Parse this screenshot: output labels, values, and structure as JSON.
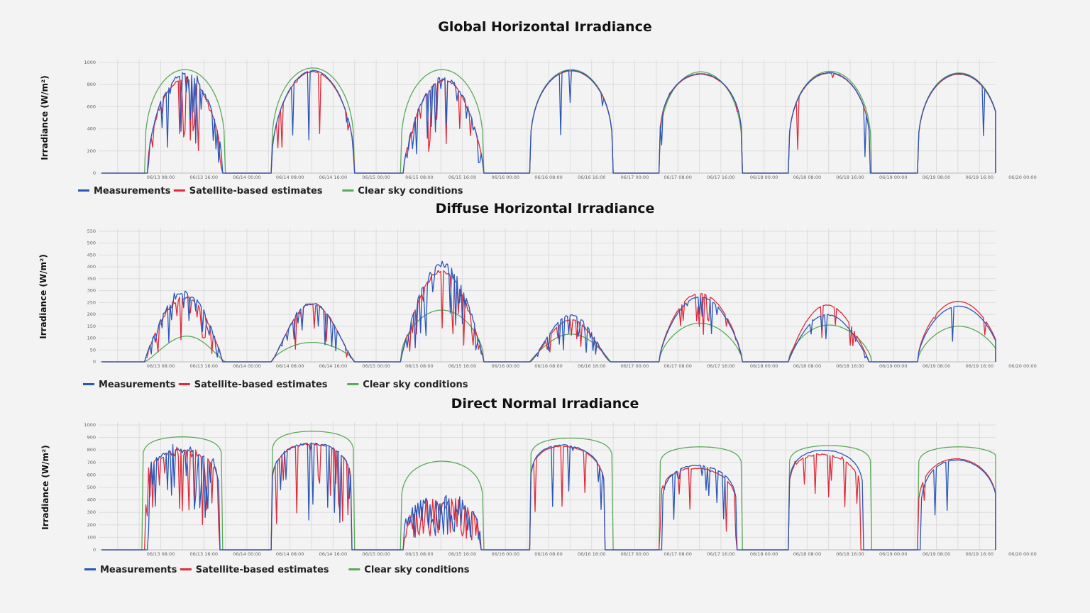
{
  "colors": {
    "measurements": "#2a56b6",
    "satellite": "#e02a3a",
    "clearsky": "#5aaa5a",
    "grid": "#dcdcdc"
  },
  "legend": [
    "Measurements",
    "Satellite-based estimates",
    "Clear sky conditions"
  ],
  "x_tick_labels": [
    "06/13 08:00",
    "06/13 16:00",
    "06/14 00:00",
    "06/14 08:00",
    "06/14 16:00",
    "06/15 00:00",
    "06/15 08:00",
    "06/15 16:00",
    "06/16 00:00",
    "06/16 08:00",
    "06/16 16:00",
    "06/17 00:00",
    "06/17 08:00",
    "06/17 16:00",
    "06/18 00:00",
    "06/18 08:00",
    "06/18 16:00",
    "06/19 00:00",
    "06/19 08:00",
    "06/19 16:00",
    "06/20 00:00"
  ],
  "chart_data": [
    {
      "type": "line",
      "title": "Global Horizontal Irradiance",
      "ylabel": "Irradiance (W/m²)",
      "xlabel": "",
      "ylim": [
        0,
        1000
      ],
      "yticks": [
        0,
        200,
        400,
        600,
        800,
        1000
      ],
      "x_range_hours": [
        -3,
        163
      ],
      "day_offset_hours": 24,
      "series": [
        {
          "name": "Measurements",
          "color": "#2a56b6",
          "days": [
            {
              "start": 5.5,
              "end": 19.5,
              "peak": 920,
              "center": 12.5,
              "width": 0.55,
              "noise": 0.32,
              "seed": 11
            },
            {
              "start": 4.5,
              "end": 20.0,
              "peak": 930,
              "center": 12.2,
              "width": 0.45,
              "noise": 0.06,
              "seed": 12
            },
            {
              "start": 5.0,
              "end": 20.0,
              "peak": 880,
              "center": 12.5,
              "width": 0.7,
              "noise": 0.38,
              "seed": 13
            },
            {
              "start": 4.5,
              "end": 20.0,
              "peak": 930,
              "center": 12.3,
              "width": 0.3,
              "noise": 0.03,
              "seed": 14
            },
            {
              "start": 4.5,
              "end": 20.0,
              "peak": 900,
              "center": 12.3,
              "width": 0.25,
              "noise": 0.03,
              "seed": 15
            },
            {
              "start": 4.5,
              "end": 19.8,
              "peak": 910,
              "center": 12.3,
              "width": 0.3,
              "noise": 0.04,
              "seed": 16
            },
            {
              "start": 4.5,
              "end": 20.0,
              "peak": 900,
              "center": 12.3,
              "width": 0.3,
              "noise": 0.02,
              "seed": 17
            }
          ]
        },
        {
          "name": "Satellite-based estimates",
          "color": "#e02a3a",
          "days": [
            {
              "start": 5.5,
              "end": 19.5,
              "peak": 870,
              "center": 12.5,
              "width": 0.55,
              "noise": 0.2,
              "seed": 21
            },
            {
              "start": 4.5,
              "end": 20.0,
              "peak": 920,
              "center": 12.2,
              "width": 0.45,
              "noise": 0.05,
              "seed": 22
            },
            {
              "start": 5.0,
              "end": 20.0,
              "peak": 860,
              "center": 12.5,
              "width": 0.7,
              "noise": 0.25,
              "seed": 23
            },
            {
              "start": 4.5,
              "end": 20.0,
              "peak": 925,
              "center": 12.3,
              "width": 0.3,
              "noise": 0.02,
              "seed": 24
            },
            {
              "start": 4.5,
              "end": 20.0,
              "peak": 895,
              "center": 12.3,
              "width": 0.25,
              "noise": 0.03,
              "seed": 25
            },
            {
              "start": 4.5,
              "end": 19.8,
              "peak": 905,
              "center": 12.3,
              "width": 0.3,
              "noise": 0.03,
              "seed": 26
            },
            {
              "start": 4.5,
              "end": 20.0,
              "peak": 895,
              "center": 12.3,
              "width": 0.3,
              "noise": 0.02,
              "seed": 27
            }
          ]
        },
        {
          "name": "Clear sky conditions",
          "color": "#5aaa5a",
          "days": [
            {
              "start": 5.0,
              "end": 20.0,
              "peak": 935,
              "center": 12.5,
              "width": 0.3,
              "noise": 0,
              "seed": 31
            },
            {
              "start": 4.5,
              "end": 20.0,
              "peak": 950,
              "center": 12.3,
              "width": 0.3,
              "noise": 0,
              "seed": 32
            },
            {
              "start": 4.5,
              "end": 20.0,
              "peak": 935,
              "center": 12.3,
              "width": 0.3,
              "noise": 0,
              "seed": 33
            },
            {
              "start": 4.5,
              "end": 20.0,
              "peak": 935,
              "center": 12.3,
              "width": 0.3,
              "noise": 0,
              "seed": 34
            },
            {
              "start": 4.5,
              "end": 20.0,
              "peak": 915,
              "center": 12.3,
              "width": 0.3,
              "noise": 0,
              "seed": 35
            },
            {
              "start": 4.5,
              "end": 20.0,
              "peak": 920,
              "center": 12.3,
              "width": 0.3,
              "noise": 0,
              "seed": 36
            },
            {
              "start": 4.5,
              "end": 20.0,
              "peak": 905,
              "center": 12.3,
              "width": 0.3,
              "noise": 0,
              "seed": 37
            }
          ]
        }
      ]
    },
    {
      "type": "line",
      "title": "Diffuse Horizontal Irradiance",
      "ylabel": "Irradiance (W/m²)",
      "xlabel": "",
      "ylim": [
        0,
        550
      ],
      "yticks": [
        0,
        50,
        100,
        150,
        200,
        250,
        300,
        350,
        400,
        450,
        500,
        550
      ],
      "x_range_hours": [
        -3,
        163
      ],
      "day_offset_hours": 24,
      "series": [
        {
          "name": "Measurements",
          "color": "#2a56b6",
          "days": [
            {
              "start": 5.0,
              "end": 19.5,
              "peak": 300,
              "center": 10.5,
              "width": 0.9,
              "noise": 0.45,
              "seed": 41
            },
            {
              "start": 4.5,
              "end": 20.0,
              "peak": 250,
              "center": 13.8,
              "width": 1.2,
              "noise": 0.25,
              "seed": 42
            },
            {
              "start": 4.5,
              "end": 20.0,
              "peak": 420,
              "center": 12.0,
              "width": 0.9,
              "noise": 0.35,
              "seed": 43
            },
            {
              "start": 4.5,
              "end": 19.5,
              "peak": 200,
              "center": 10.0,
              "width": 1.3,
              "noise": 0.2,
              "seed": 44
            },
            {
              "start": 4.5,
              "end": 20.0,
              "peak": 275,
              "center": 13.0,
              "width": 0.7,
              "noise": 0.08,
              "seed": 45
            },
            {
              "start": 4.5,
              "end": 19.5,
              "peak": 200,
              "center": 14.0,
              "width": 0.9,
              "noise": 0.08,
              "seed": 46
            },
            {
              "start": 4.5,
              "end": 20.0,
              "peak": 235,
              "center": 12.8,
              "width": 0.6,
              "noise": 0.03,
              "seed": 47
            }
          ]
        },
        {
          "name": "Satellite-based estimates",
          "color": "#e02a3a",
          "days": [
            {
              "start": 5.0,
              "end": 19.5,
              "peak": 280,
              "center": 11.0,
              "width": 0.9,
              "noise": 0.4,
              "seed": 51
            },
            {
              "start": 4.5,
              "end": 20.0,
              "peak": 250,
              "center": 13.5,
              "width": 1.2,
              "noise": 0.22,
              "seed": 52
            },
            {
              "start": 4.5,
              "end": 20.0,
              "peak": 390,
              "center": 12.5,
              "width": 0.9,
              "noise": 0.25,
              "seed": 53
            },
            {
              "start": 4.5,
              "end": 19.5,
              "peak": 180,
              "center": 10.5,
              "width": 1.3,
              "noise": 0.2,
              "seed": 54
            },
            {
              "start": 4.5,
              "end": 20.0,
              "peak": 290,
              "center": 13.0,
              "width": 0.7,
              "noise": 0.1,
              "seed": 55
            },
            {
              "start": 4.5,
              "end": 19.5,
              "peak": 240,
              "center": 14.3,
              "width": 0.9,
              "noise": 0.1,
              "seed": 56
            },
            {
              "start": 4.5,
              "end": 20.0,
              "peak": 255,
              "center": 13.3,
              "width": 0.6,
              "noise": 0.03,
              "seed": 57
            }
          ]
        },
        {
          "name": "Clear sky conditions",
          "color": "#5aaa5a",
          "days": [
            {
              "start": 5.0,
              "end": 20.0,
              "peak": 108,
              "center": 9.0,
              "width": 1.2,
              "noise": 0,
              "seed": 61
            },
            {
              "start": 4.5,
              "end": 20.0,
              "peak": 82,
              "center": 13.0,
              "width": 0.7,
              "noise": 0,
              "seed": 62
            },
            {
              "start": 4.5,
              "end": 20.0,
              "peak": 218,
              "center": 12.5,
              "width": 0.5,
              "noise": 0,
              "seed": 63
            },
            {
              "start": 4.5,
              "end": 19.5,
              "peak": 117,
              "center": 10.5,
              "width": 0.9,
              "noise": 0,
              "seed": 64
            },
            {
              "start": 4.5,
              "end": 20.0,
              "peak": 163,
              "center": 13.0,
              "width": 0.6,
              "noise": 0,
              "seed": 65
            },
            {
              "start": 4.5,
              "end": 20.0,
              "peak": 155,
              "center": 13.0,
              "width": 0.6,
              "noise": 0,
              "seed": 66
            },
            {
              "start": 4.5,
              "end": 20.0,
              "peak": 150,
              "center": 12.8,
              "width": 0.6,
              "noise": 0,
              "seed": 67
            }
          ]
        }
      ]
    },
    {
      "type": "line",
      "title": "Direct Normal Irradiance",
      "ylabel": "Irradiance (W/m²)",
      "xlabel": "",
      "ylim": [
        0,
        1000
      ],
      "yticks": [
        0,
        100,
        200,
        300,
        400,
        500,
        600,
        700,
        800,
        900,
        1000
      ],
      "x_range_hours": [
        -3,
        163
      ],
      "day_offset_hours": 24,
      "series": [
        {
          "name": "Measurements",
          "color": "#2a56b6",
          "days": [
            {
              "start": 5.5,
              "end": 19.0,
              "peak": 820,
              "center": 12.5,
              "width": 0.12,
              "noise": 0.45,
              "seed": 71
            },
            {
              "start": 4.5,
              "end": 19.5,
              "peak": 860,
              "center": 12.0,
              "width": 0.12,
              "noise": 0.15,
              "seed": 72
            },
            {
              "start": 5.0,
              "end": 19.5,
              "peak": 450,
              "center": 13.0,
              "width": 0.3,
              "noise": 0.85,
              "seed": 73
            },
            {
              "start": 4.5,
              "end": 18.5,
              "peak": 840,
              "center": 12.5,
              "width": 0.12,
              "noise": 0.05,
              "seed": 74
            },
            {
              "start": 5.0,
              "end": 19.0,
              "peak": 680,
              "center": 12.5,
              "width": 0.15,
              "noise": 0.1,
              "seed": 75
            },
            {
              "start": 4.5,
              "end": 18.5,
              "peak": 800,
              "center": 12.0,
              "width": 0.12,
              "noise": 0.04,
              "seed": 76
            },
            {
              "start": 5.0,
              "end": 19.5,
              "peak": 720,
              "center": 13.0,
              "width": 0.2,
              "noise": 0.03,
              "seed": 77
            }
          ]
        },
        {
          "name": "Satellite-based estimates",
          "color": "#e02a3a",
          "days": [
            {
              "start": 5.0,
              "end": 19.0,
              "peak": 800,
              "center": 12.5,
              "width": 0.12,
              "noise": 0.4,
              "seed": 81
            },
            {
              "start": 4.5,
              "end": 19.5,
              "peak": 860,
              "center": 12.0,
              "width": 0.12,
              "noise": 0.15,
              "seed": 82
            },
            {
              "start": 5.0,
              "end": 19.5,
              "peak": 420,
              "center": 12.5,
              "width": 0.3,
              "noise": 0.75,
              "seed": 83
            },
            {
              "start": 4.5,
              "end": 18.5,
              "peak": 830,
              "center": 12.5,
              "width": 0.12,
              "noise": 0.05,
              "seed": 84
            },
            {
              "start": 4.5,
              "end": 19.0,
              "peak": 660,
              "center": 12.5,
              "width": 0.15,
              "noise": 0.12,
              "seed": 85
            },
            {
              "start": 4.5,
              "end": 18.0,
              "peak": 770,
              "center": 12.0,
              "width": 0.12,
              "noise": 0.12,
              "seed": 86
            },
            {
              "start": 4.5,
              "end": 19.5,
              "peak": 730,
              "center": 12.5,
              "width": 0.2,
              "noise": 0.03,
              "seed": 87
            }
          ]
        },
        {
          "name": "Clear sky conditions",
          "color": "#5aaa5a",
          "days": [
            {
              "start": 4.5,
              "end": 19.5,
              "peak": 905,
              "center": 12.0,
              "width": 0.05,
              "noise": 0,
              "seed": 91
            },
            {
              "start": 4.5,
              "end": 20.0,
              "peak": 950,
              "center": 12.3,
              "width": 0.05,
              "noise": 0,
              "seed": 92
            },
            {
              "start": 4.5,
              "end": 20.0,
              "peak": 710,
              "center": 12.3,
              "width": 0.15,
              "noise": 0,
              "seed": 93
            },
            {
              "start": 4.5,
              "end": 20.0,
              "peak": 895,
              "center": 12.3,
              "width": 0.05,
              "noise": 0,
              "seed": 94
            },
            {
              "start": 4.5,
              "end": 20.0,
              "peak": 825,
              "center": 12.3,
              "width": 0.05,
              "noise": 0,
              "seed": 95
            },
            {
              "start": 4.5,
              "end": 20.0,
              "peak": 835,
              "center": 12.3,
              "width": 0.05,
              "noise": 0,
              "seed": 96
            },
            {
              "start": 4.5,
              "end": 20.0,
              "peak": 825,
              "center": 12.3,
              "width": 0.05,
              "noise": 0,
              "seed": 97
            }
          ]
        }
      ]
    }
  ]
}
